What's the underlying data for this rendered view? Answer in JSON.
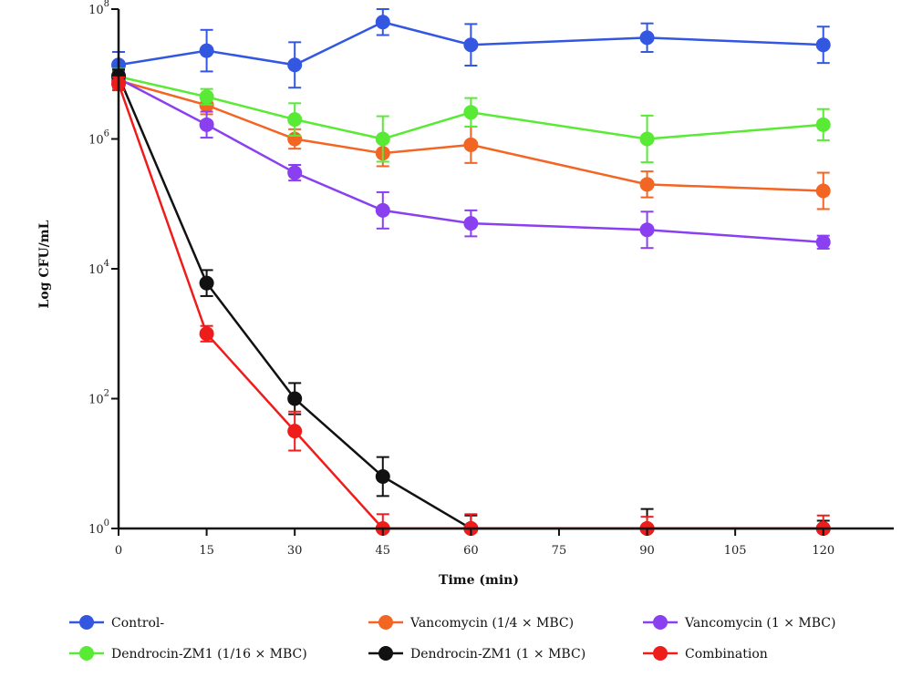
{
  "chart_data": {
    "type": "line",
    "title": "",
    "xlabel": "Time (min)",
    "ylabel": "Log CFU/mL",
    "x_ticks": [
      0,
      15,
      30,
      45,
      60,
      75,
      90,
      105,
      120
    ],
    "x_range": [
      0,
      132
    ],
    "y_scale": "log10",
    "y_ticks": [
      {
        "exp": 0,
        "base": "10",
        "power": "0"
      },
      {
        "exp": 2,
        "base": "10",
        "power": "2"
      },
      {
        "exp": 4,
        "base": "10",
        "power": "4"
      },
      {
        "exp": 6,
        "base": "10",
        "power": "6"
      },
      {
        "exp": 8,
        "base": "10",
        "power": "8"
      }
    ],
    "y_range_log10": [
      0,
      8
    ],
    "grid": false,
    "legend_position": "bottom",
    "series": [
      {
        "name": "Control-",
        "color": "#3357e0",
        "x": [
          0,
          15,
          30,
          45,
          60,
          90,
          120
        ],
        "log10_y": [
          7.14,
          7.36,
          7.14,
          7.8,
          7.45,
          7.56,
          7.45
        ],
        "log10_err": [
          0.2,
          0.32,
          0.35,
          0.2,
          0.32,
          0.22,
          0.28
        ]
      },
      {
        "name": "Vancomycin (1/4 × MBC)",
        "color": "#f26522",
        "x": [
          0,
          15,
          30,
          45,
          60,
          90,
          120
        ],
        "log10_y": [
          6.9,
          6.52,
          6.0,
          5.78,
          5.91,
          5.3,
          5.2
        ],
        "log10_err": [
          0.12,
          0.14,
          0.15,
          0.2,
          0.28,
          0.2,
          0.28
        ]
      },
      {
        "name": "Vancomycin (1 × MBC)",
        "color": "#8a3ff0",
        "x": [
          0,
          15,
          30,
          45,
          60,
          90,
          120
        ],
        "log10_y": [
          6.93,
          6.22,
          5.48,
          4.9,
          4.7,
          4.6,
          4.41
        ],
        "log10_err": [
          0.12,
          0.2,
          0.12,
          0.28,
          0.2,
          0.28,
          0.1
        ]
      },
      {
        "name": "Dendrocin-ZM1 (1/16 × MBC)",
        "color": "#58ea35",
        "x": [
          0,
          15,
          30,
          45,
          60,
          90,
          120
        ],
        "log10_y": [
          6.96,
          6.65,
          6.3,
          6.0,
          6.41,
          6.0,
          6.22
        ],
        "log10_err": [
          0.12,
          0.12,
          0.25,
          0.35,
          0.22,
          0.36,
          0.24
        ]
      },
      {
        "name": "Dendrocin-ZM1 (1 × MBC)",
        "color": "#111111",
        "x": [
          0,
          15,
          30,
          45,
          60,
          90,
          120
        ],
        "log10_y": [
          6.97,
          3.78,
          2.0,
          0.8,
          0.0,
          0.0,
          0.0
        ],
        "log10_err": [
          0.1,
          0.2,
          0.24,
          0.3,
          0.2,
          0.3,
          0.12
        ]
      },
      {
        "name": "Combination",
        "color": "#ef1c1c",
        "x": [
          0,
          15,
          30,
          45,
          60,
          90,
          120
        ],
        "log10_y": [
          6.85,
          3.0,
          1.5,
          0.0,
          0.0,
          0.0,
          0.0
        ],
        "log10_err": [
          0.1,
          0.12,
          0.3,
          0.22,
          0.22,
          0.18,
          0.2
        ]
      }
    ]
  }
}
